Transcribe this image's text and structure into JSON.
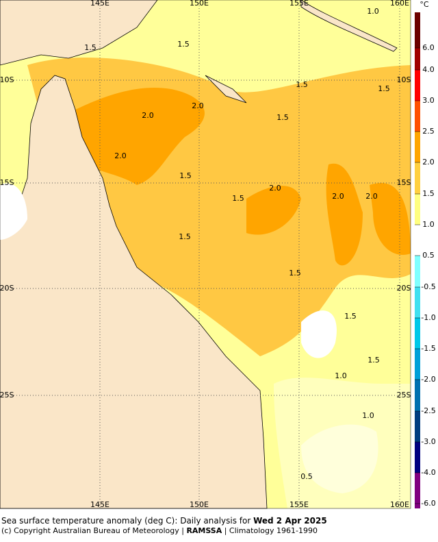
{
  "map": {
    "lon_labels": [
      "145E",
      "150E",
      "155E",
      "160E"
    ],
    "lat_labels": [
      "10S",
      "15S",
      "20S",
      "25S"
    ],
    "contour_labels": [
      "1.5",
      "1.5",
      "1.0",
      "1.5",
      "1.5",
      "2.0",
      "2.0",
      "1.5",
      "2.0",
      "1.5",
      "2.0",
      "1.5",
      "2.0",
      "2.0",
      "1.5",
      "1.5",
      "1.5",
      "1.5",
      "1.0",
      "1.0",
      "0.5"
    ],
    "colorbar": {
      "unit": "°C",
      "labels": [
        "6.0",
        "4.0",
        "3.0",
        "2.5",
        "2.0",
        "1.5",
        "1.0",
        "0.5",
        "-0.5",
        "-1.0",
        "-1.5",
        "-2.0",
        "-2.5",
        "-3.0",
        "-4.0",
        "-6.0"
      ]
    },
    "caption": {
      "line1_prefix": "Sea surface temperature anomaly (deg C): Daily analysis for ",
      "line1_date": "Wed 2 Apr 2025",
      "line2_prefix": "(c) Copyright Australian Bureau of Meteorology | ",
      "line2_bold": "RAMSSA",
      "line2_suffix": " | Climatology 1961-1990"
    }
  }
}
